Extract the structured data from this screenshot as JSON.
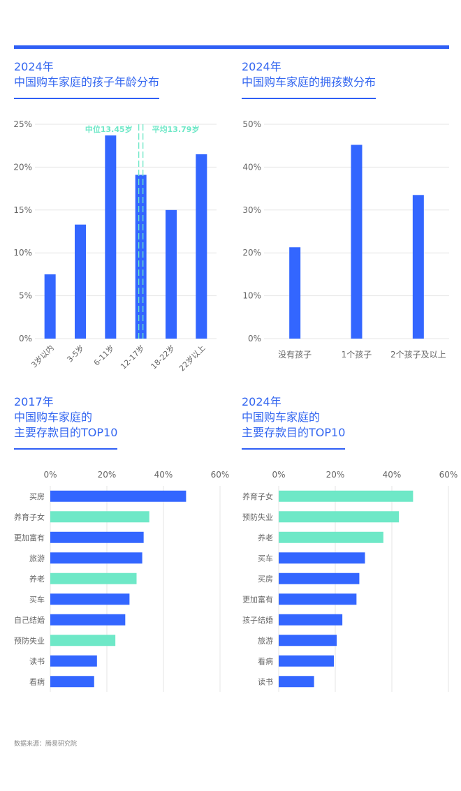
{
  "source": "数据来源：腾易研究院",
  "colors": {
    "primary": "#3366ff",
    "secondary": "#6ee8c7",
    "axis_text": "#666666",
    "title": "#3366f0",
    "grid": "#e6e6e6"
  },
  "chart_data": [
    {
      "type": "bar",
      "title_year": "2024年",
      "title": "中国购车家庭的孩子年龄分布",
      "categories": [
        "3岁以内",
        "3-5岁",
        "6-11岁",
        "12-17岁",
        "18-22岁",
        "22岁以上"
      ],
      "values": [
        7.5,
        13.3,
        23.7,
        19.1,
        15.0,
        21.5
      ],
      "yticks": [
        "0%",
        "5%",
        "10%",
        "15%",
        "20%",
        "25%"
      ],
      "ylim": [
        0,
        25
      ],
      "annotations": {
        "median_label": "中位13.45岁",
        "mean_label": "平均13.79岁"
      }
    },
    {
      "type": "bar",
      "title_year": "2024年",
      "title": "中国购车家庭的拥孩数分布",
      "categories": [
        "没有孩子",
        "1个孩子",
        "2个孩子及以上"
      ],
      "values": [
        21.3,
        45.2,
        33.5
      ],
      "yticks": [
        "0%",
        "10%",
        "20%",
        "30%",
        "40%",
        "50%"
      ],
      "ylim": [
        0,
        50
      ]
    },
    {
      "type": "bar",
      "orientation": "horizontal",
      "title_year": "2017年",
      "title_line1": "中国购车家庭的",
      "title_line2": "主要存款目的TOP10",
      "categories": [
        "买房",
        "养育子女",
        "更加富有",
        "旅游",
        "养老",
        "买车",
        "自己结婚",
        "预防失业",
        "读书",
        "看病"
      ],
      "values": [
        48,
        35,
        33,
        32.5,
        30.5,
        28,
        26.5,
        23,
        16.5,
        15.5
      ],
      "highlight": [
        false,
        true,
        false,
        false,
        true,
        false,
        false,
        true,
        false,
        false
      ],
      "xticks": [
        "0%",
        "20%",
        "40%",
        "60%"
      ],
      "xlim": [
        0,
        60
      ]
    },
    {
      "type": "bar",
      "orientation": "horizontal",
      "title_year": "2024年",
      "title_line1": "中国购车家庭的",
      "title_line2": "主要存款目的TOP10",
      "categories": [
        "养育子女",
        "预防失业",
        "养老",
        "买车",
        "买房",
        "更加富有",
        "孩子结婚",
        "旅游",
        "看病",
        "读书"
      ],
      "values": [
        47.5,
        42.5,
        37,
        30.5,
        28.5,
        27.5,
        22.5,
        20.5,
        19.5,
        12.5
      ],
      "highlight": [
        true,
        true,
        true,
        false,
        false,
        false,
        false,
        false,
        false,
        false
      ],
      "xticks": [
        "0%",
        "20%",
        "40%",
        "60%"
      ],
      "xlim": [
        0,
        60
      ]
    }
  ]
}
